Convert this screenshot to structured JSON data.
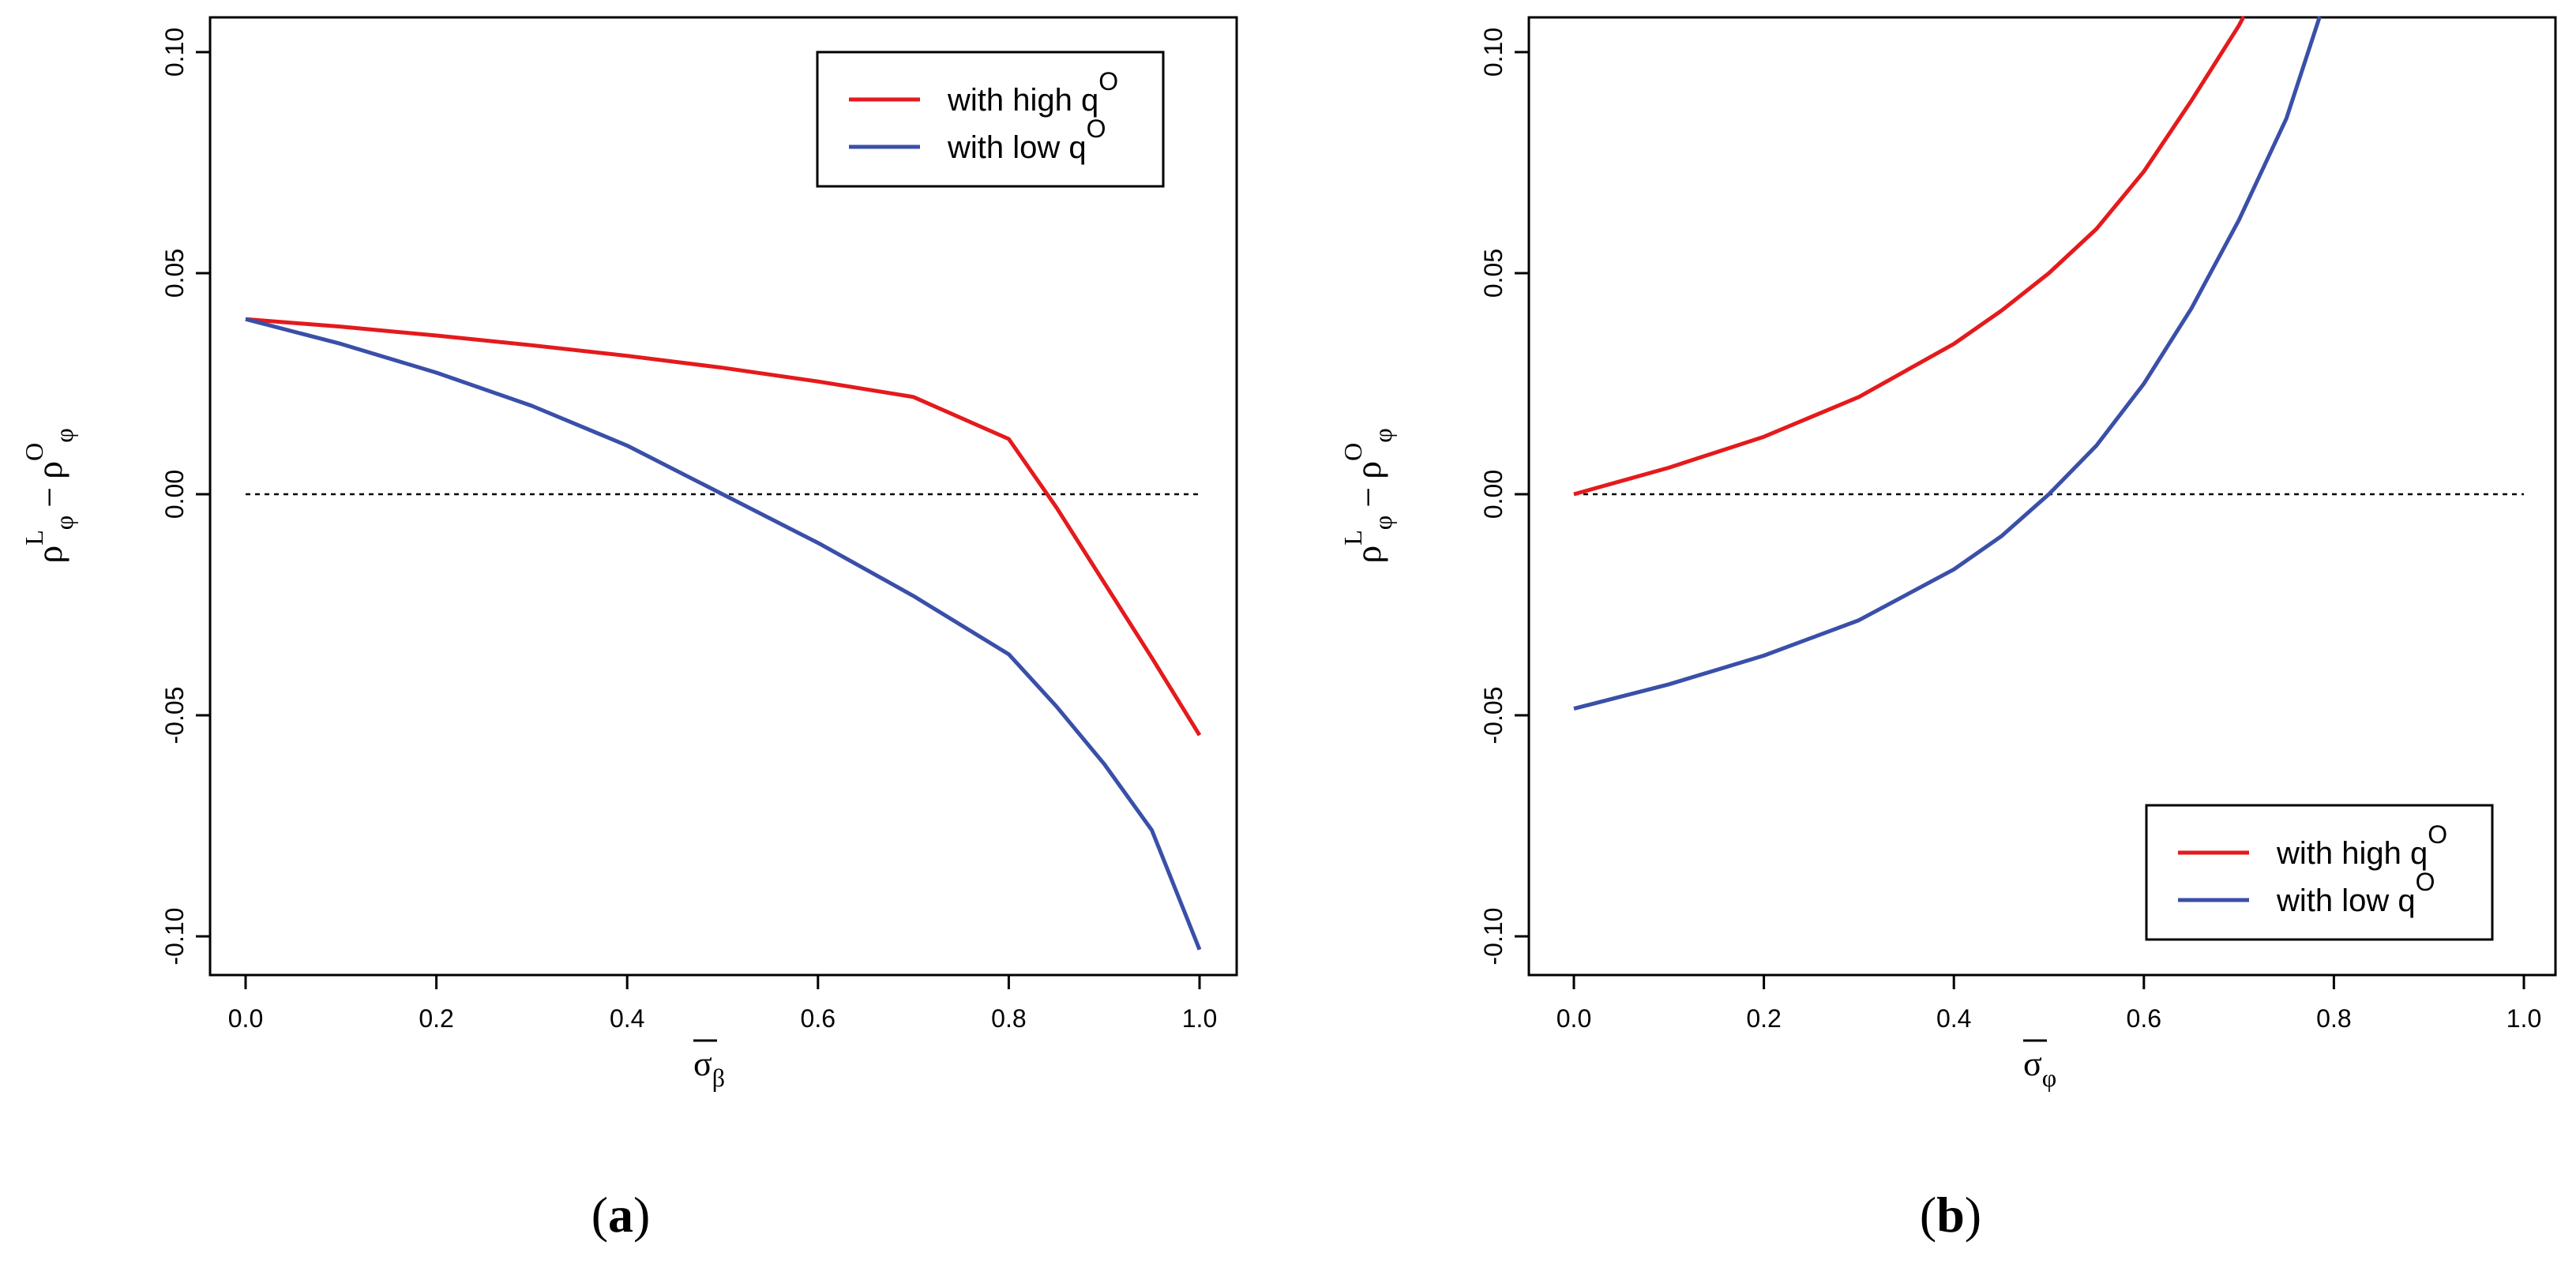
{
  "chart_data": [
    {
      "id": "a",
      "type": "line",
      "panel_label": "a",
      "xlabel": {
        "base": "σ",
        "sub": "β"
      },
      "ylabel": {
        "left": "ρ",
        "left_sup": "L",
        "left_sub": "φ",
        "minus": "−",
        "right": "ρ",
        "right_sup": "O",
        "right_sub": "φ"
      },
      "xlim": [
        0,
        1
      ],
      "ylim": [
        -0.1,
        0.1
      ],
      "x_ticks": [
        "0.0",
        "0.2",
        "0.4",
        "0.6",
        "0.8",
        "1.0"
      ],
      "y_ticks": [
        "-0.10",
        "-0.05",
        "0.00",
        "0.05",
        "0.10"
      ],
      "reference_line": {
        "y": 0,
        "style": "dotted"
      },
      "legend": {
        "position": "top-right"
      },
      "series": [
        {
          "name": "with high q",
          "sup": "O",
          "color": "#e41a1c",
          "x": [
            0.0,
            0.1,
            0.2,
            0.3,
            0.4,
            0.5,
            0.6,
            0.7,
            0.8,
            0.85,
            0.9,
            0.95,
            1.0
          ],
          "y": [
            0.0396,
            0.0379,
            0.0359,
            0.0337,
            0.0313,
            0.0286,
            0.0255,
            0.022,
            0.0125,
            -0.003,
            -0.02,
            -0.037,
            -0.0545
          ]
        },
        {
          "name": "with low q",
          "sup": "O",
          "color": "#3a4fa8",
          "x": [
            0.0,
            0.1,
            0.2,
            0.3,
            0.4,
            0.5,
            0.6,
            0.7,
            0.8,
            0.85,
            0.9,
            0.95,
            1.0
          ],
          "y": [
            0.0396,
            0.034,
            0.0275,
            0.02,
            0.011,
            0.0,
            -0.011,
            -0.023,
            -0.0362,
            -0.048,
            -0.061,
            -0.076,
            -0.103
          ]
        }
      ]
    },
    {
      "id": "b",
      "type": "line",
      "panel_label": "b",
      "xlabel": {
        "base": "σ",
        "sub": "φ"
      },
      "ylabel": {
        "left": "ρ",
        "left_sup": "L",
        "left_sub": "φ",
        "minus": "−",
        "right": "ρ",
        "right_sup": "O",
        "right_sub": "φ"
      },
      "xlim": [
        0,
        1
      ],
      "ylim": [
        -0.1,
        0.1
      ],
      "x_ticks": [
        "0.0",
        "0.2",
        "0.4",
        "0.6",
        "0.8",
        "1.0"
      ],
      "y_ticks": [
        "-0.10",
        "-0.05",
        "0.00",
        "0.05",
        "0.10"
      ],
      "reference_line": {
        "y": 0,
        "style": "dotted"
      },
      "legend": {
        "position": "bottom-right"
      },
      "series": [
        {
          "name": "with high q",
          "sup": "O",
          "color": "#e41a1c",
          "x": [
            0.0,
            0.1,
            0.2,
            0.3,
            0.4,
            0.45,
            0.5,
            0.55,
            0.6,
            0.65,
            0.7,
            0.705
          ],
          "y": [
            0.0,
            0.006,
            0.013,
            0.022,
            0.034,
            0.0415,
            0.05,
            0.06,
            0.073,
            0.089,
            0.106,
            0.108
          ]
        },
        {
          "name": "with low q",
          "sup": "O",
          "color": "#3a4fa8",
          "x": [
            0.0,
            0.1,
            0.2,
            0.3,
            0.4,
            0.45,
            0.5,
            0.55,
            0.6,
            0.65,
            0.7,
            0.75,
            0.785
          ],
          "y": [
            -0.0485,
            -0.043,
            -0.0365,
            -0.0285,
            -0.017,
            -0.0095,
            0.0,
            0.011,
            0.025,
            0.042,
            0.062,
            0.085,
            0.108
          ]
        }
      ]
    }
  ]
}
